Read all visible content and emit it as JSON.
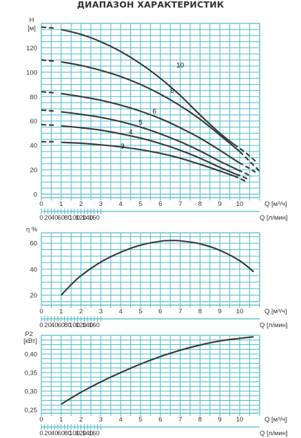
{
  "title": "ДИАПАЗОН ХАРАКТЕРИСТИК",
  "colors": {
    "grid": "#49b8c9",
    "curve": "#3a3a3a",
    "text": "#333333"
  },
  "chart_data": [
    {
      "id": "head",
      "type": "line",
      "ylabel": "H",
      "yunit": "[м]",
      "x_unit_1": "Q [м³/ч]",
      "x_unit_2": "Q [л/мин]",
      "xlim": [
        0,
        11
      ],
      "ylim": [
        0,
        140
      ],
      "yticks": [
        "0",
        "20",
        "40",
        "60",
        "80",
        "100",
        "120"
      ],
      "xticks1": [
        "0",
        "1",
        "2",
        "3",
        "4",
        "5",
        "6",
        "7",
        "8",
        "9",
        "10"
      ],
      "xticks2": [
        "0",
        "20",
        "40",
        "60",
        "80",
        "100",
        "120",
        "140",
        "160"
      ],
      "series": [
        {
          "name": "3",
          "dashed_start": [
            [
              0,
              43
            ],
            [
              0.75,
              43
            ]
          ],
          "solid": [
            [
              1,
              42.5
            ],
            [
              2,
              41.8
            ],
            [
              3,
              40.5
            ],
            [
              4,
              38.8
            ],
            [
              5,
              36.5
            ],
            [
              6,
              33.5
            ],
            [
              7,
              29.5
            ],
            [
              8,
              24.5
            ],
            [
              9,
              19
            ],
            [
              9.7,
              15
            ]
          ],
          "dashed_end": [
            [
              9.7,
              15
            ],
            [
              10,
              13
            ],
            [
              10.3,
              10.5
            ]
          ],
          "label_at": [
            4.1,
            37.5
          ]
        },
        {
          "name": "4",
          "dashed_start": [
            [
              0,
              57
            ],
            [
              0.75,
              56.5
            ]
          ],
          "solid": [
            [
              1,
              56
            ],
            [
              2,
              54.5
            ],
            [
              3,
              52.5
            ],
            [
              4,
              49.5
            ],
            [
              5,
              46
            ],
            [
              6,
              41.5
            ],
            [
              7,
              36
            ],
            [
              8,
              29.5
            ],
            [
              9,
              22
            ],
            [
              9.8,
              16.5
            ]
          ],
          "dashed_end": [
            [
              9.8,
              16.5
            ],
            [
              10.2,
              14
            ],
            [
              10.5,
              11.5
            ]
          ],
          "label_at": [
            4.5,
            49
          ]
        },
        {
          "name": "5",
          "dashed_start": [
            [
              0,
              69
            ],
            [
              0.75,
              68
            ]
          ],
          "solid": [
            [
              1,
              67.5
            ],
            [
              2,
              65.5
            ],
            [
              3,
              63
            ],
            [
              4,
              59.5
            ],
            [
              5,
              55
            ],
            [
              6,
              49.5
            ],
            [
              7,
              43
            ],
            [
              8,
              35.5
            ],
            [
              9,
              27
            ],
            [
              9.9,
              20
            ]
          ],
          "dashed_end": [
            [
              9.9,
              20
            ],
            [
              10.3,
              17
            ],
            [
              10.6,
              14.5
            ]
          ],
          "label_at": [
            5.0,
            57
          ]
        },
        {
          "name": "6",
          "dashed_start": [
            [
              0,
              84
            ],
            [
              0.75,
              83
            ]
          ],
          "solid": [
            [
              1,
              82.5
            ],
            [
              2,
              80
            ],
            [
              3,
              77
            ],
            [
              4,
              73
            ],
            [
              5,
              68
            ],
            [
              6,
              62
            ],
            [
              7,
              54.5
            ],
            [
              8,
              46
            ],
            [
              9,
              36
            ],
            [
              9.95,
              26
            ]
          ],
          "dashed_end": [
            [
              9.95,
              26
            ],
            [
              10.4,
              22
            ],
            [
              10.8,
              18
            ]
          ],
          "label_at": [
            5.7,
            66
          ]
        },
        {
          "name": "8",
          "dashed_start": [
            [
              0,
              110
            ],
            [
              0.75,
              109
            ]
          ],
          "solid": [
            [
              1,
              108.5
            ],
            [
              2,
              105.5
            ],
            [
              3,
              101.5
            ],
            [
              4,
              96.5
            ],
            [
              5,
              90
            ],
            [
              6,
              82
            ],
            [
              7,
              72.5
            ],
            [
              8,
              61.5
            ],
            [
              9,
              48.5
            ],
            [
              10,
              35
            ]
          ],
          "dashed_end": [
            [
              10,
              35
            ],
            [
              10.5,
              27
            ],
            [
              11,
              19
            ]
          ],
          "label_at": [
            6.6,
            83
          ]
        },
        {
          "name": "10",
          "dashed_start": [
            [
              0,
              137
            ],
            [
              0.75,
              136
            ]
          ],
          "solid": [
            [
              1,
              135
            ],
            [
              2,
              131
            ],
            [
              3,
              125
            ],
            [
              4,
              117
            ],
            [
              5,
              107
            ],
            [
              6,
              95
            ],
            [
              7,
              81
            ],
            [
              8,
              65
            ],
            [
              9,
              50
            ],
            [
              9.7,
              41
            ]
          ],
          "dashed_end": [
            [
              9.7,
              41
            ],
            [
              10.3,
              34
            ],
            [
              10.8,
              27
            ]
          ],
          "label_at": [
            7.0,
            104
          ]
        }
      ]
    },
    {
      "id": "efficiency",
      "type": "line",
      "ylabel": "η %",
      "x_unit_1": "Q [м³/ч]",
      "x_unit_2": "Q [л/мин]",
      "xlim": [
        0,
        11
      ],
      "ylim": [
        15,
        68
      ],
      "yticks": [
        "20",
        "40",
        "60"
      ],
      "yticks_values": [
        20,
        40,
        60
      ],
      "xticks1": [
        "0",
        "1",
        "2",
        "3",
        "4",
        "5",
        "6",
        "7",
        "8",
        "9",
        "10"
      ],
      "xticks2": [
        "0",
        "20",
        "40",
        "60",
        "80",
        "100",
        "120",
        "140",
        "160"
      ],
      "series": [
        {
          "name": "",
          "solid": [
            [
              1,
              20
            ],
            [
              1.5,
              28
            ],
            [
              2,
              35
            ],
            [
              3,
              45.5
            ],
            [
              4,
              53
            ],
            [
              5,
              58.5
            ],
            [
              6,
              61.5
            ],
            [
              6.5,
              62
            ],
            [
              7,
              61.8
            ],
            [
              8,
              59.5
            ],
            [
              9,
              54.5
            ],
            [
              10,
              46.5
            ],
            [
              10.7,
              38
            ]
          ]
        }
      ]
    },
    {
      "id": "power",
      "type": "line",
      "ylabel": "P2",
      "yunit": "[кВт]",
      "x_unit_1": "Q [м³/ч]",
      "x_unit_2": "Q [л/мин]",
      "xlim": [
        0,
        11
      ],
      "ylim": [
        0.25,
        0.45
      ],
      "yticks": [
        "0,25",
        "0,30",
        "0,35",
        "0,40"
      ],
      "yticks_values": [
        0.25,
        0.3,
        0.35,
        0.4
      ],
      "xticks1": [
        "0",
        "1",
        "2",
        "3",
        "4",
        "5",
        "6",
        "7",
        "8",
        "9",
        "10"
      ],
      "xticks2": [
        "0",
        "20",
        "40",
        "60",
        "80",
        "100",
        "120",
        "140",
        "160"
      ],
      "series": [
        {
          "name": "",
          "solid": [
            [
              1,
              0.265
            ],
            [
              2,
              0.297
            ],
            [
              3,
              0.325
            ],
            [
              4,
              0.35
            ],
            [
              5,
              0.373
            ],
            [
              6,
              0.393
            ],
            [
              7,
              0.41
            ],
            [
              8,
              0.424
            ],
            [
              9,
              0.435
            ],
            [
              10,
              0.442
            ],
            [
              10.7,
              0.446
            ]
          ]
        }
      ]
    }
  ]
}
